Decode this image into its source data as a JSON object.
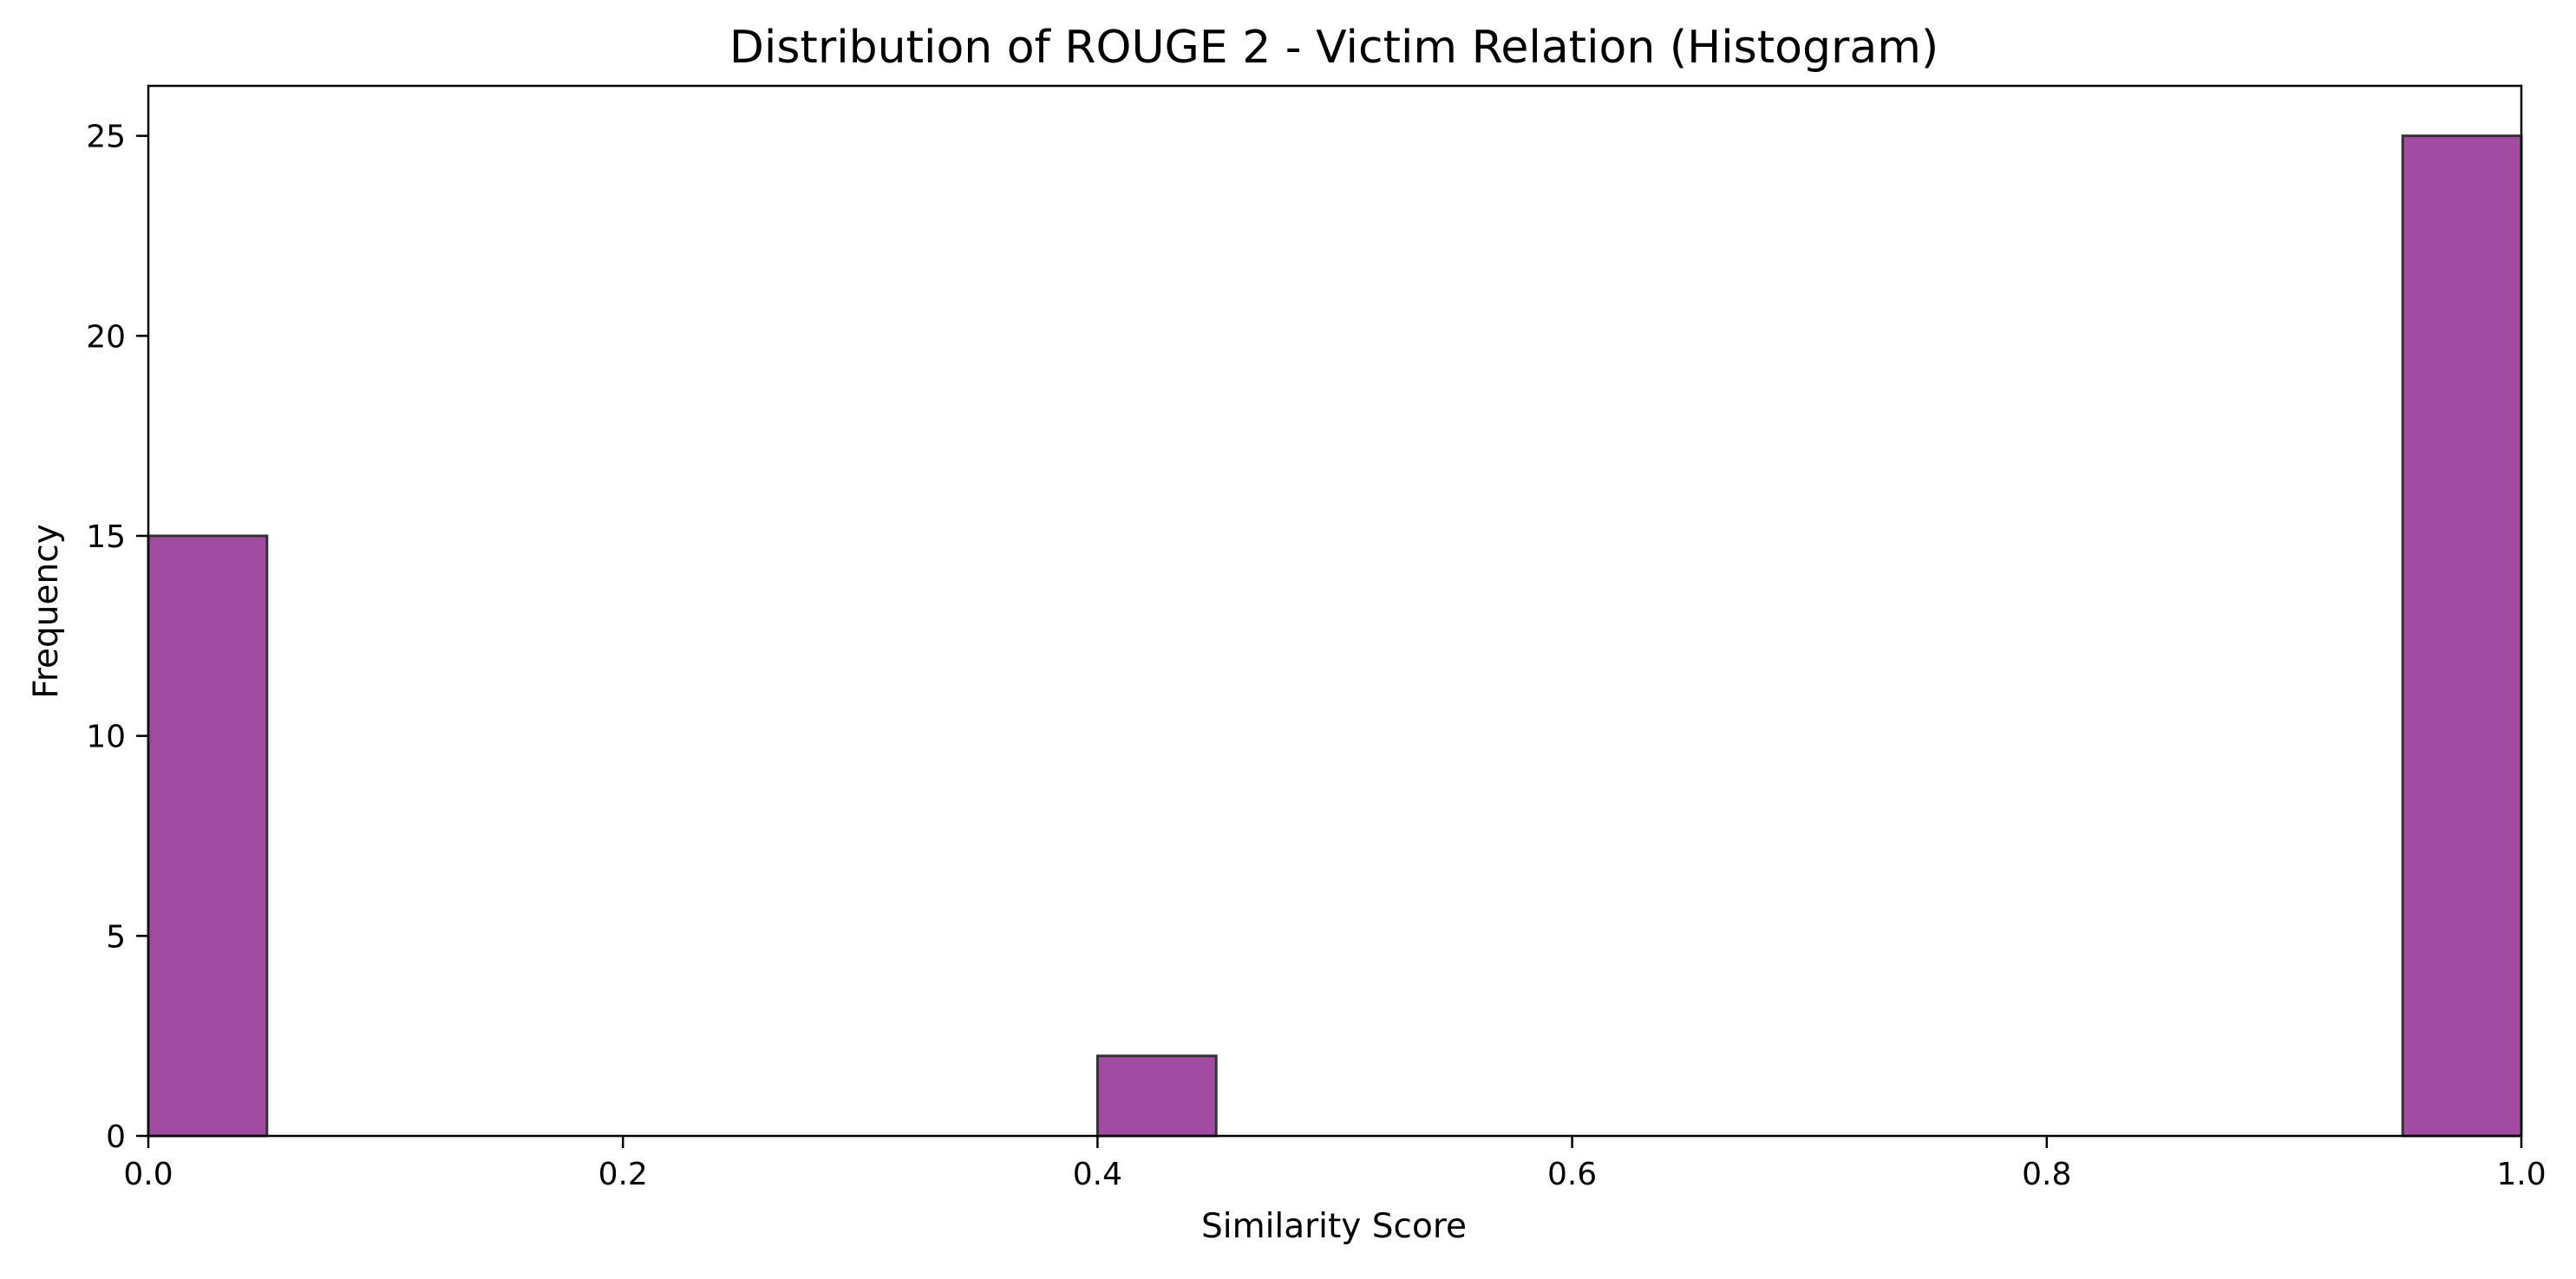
{
  "chart_data": {
    "type": "bar",
    "title": "Distribution of ROUGE 2 - Victim Relation (Histogram)",
    "xlabel": "Similarity Score",
    "ylabel": "Frequency",
    "xlim": [
      0.0,
      1.0
    ],
    "ylim": [
      0,
      26.25
    ],
    "xticks": [
      "0.0",
      "0.2",
      "0.4",
      "0.6",
      "0.8",
      "1.0"
    ],
    "yticks": [
      "0",
      "5",
      "10",
      "15",
      "20",
      "25"
    ],
    "bin_width": 0.05,
    "bins": [
      {
        "x0": 0.0,
        "x1": 0.05,
        "count": 15
      },
      {
        "x0": 0.4,
        "x1": 0.45,
        "count": 2
      },
      {
        "x0": 0.95,
        "x1": 1.0,
        "count": 25
      }
    ],
    "bar_color": "#a24ba2",
    "edge_color": "#333333",
    "grid": false,
    "legend": false
  }
}
